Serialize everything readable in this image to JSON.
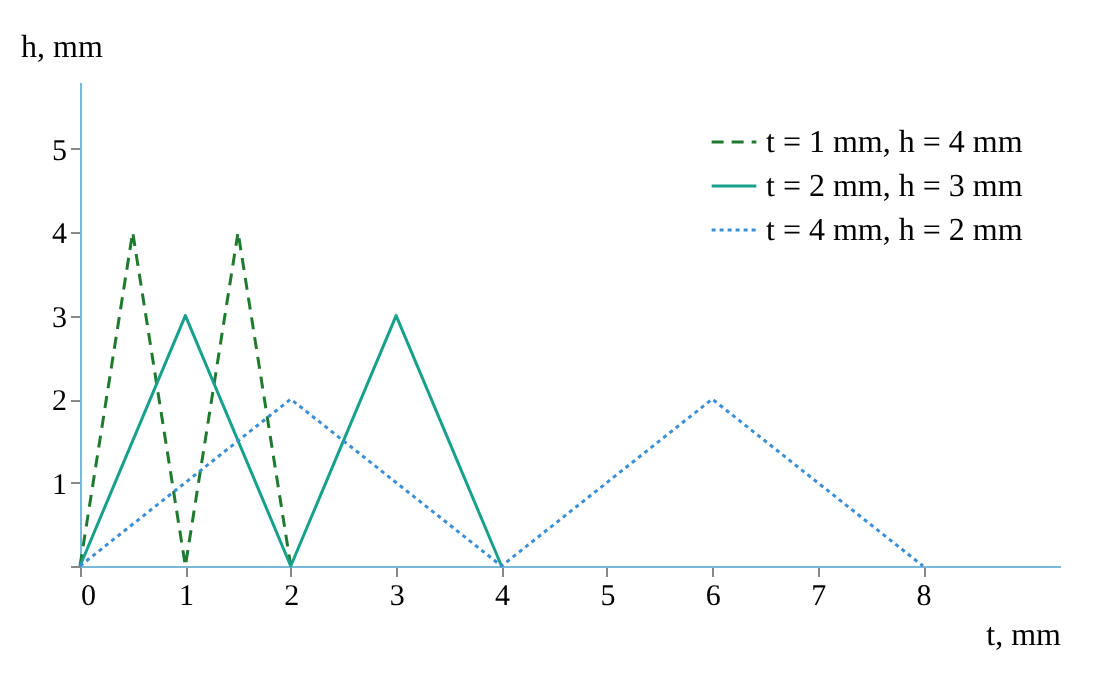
{
  "chart_data": {
    "type": "line",
    "xlabel": "t, mm",
    "ylabel": "h, mm",
    "xlim": [
      0,
      9.3
    ],
    "ylim": [
      0,
      5.8
    ],
    "xticks": [
      0,
      1,
      2,
      3,
      4,
      5,
      6,
      7,
      8
    ],
    "yticks": [
      {
        "value": 0,
        "label": null
      },
      1,
      2,
      3,
      4,
      5
    ],
    "grid": false,
    "legend": "top right",
    "marker": "none",
    "series": [
      {
        "name": "t = 1 mm, h = 4 mm",
        "color": "#1e7b2e",
        "line_style": "dashed",
        "x": [
          0,
          0.5,
          1,
          1.5,
          2
        ],
        "values": [
          0,
          4,
          0,
          4,
          0
        ]
      },
      {
        "name": "t = 2 mm, h = 3 mm",
        "color": "#17a08c",
        "line_style": "solid",
        "x": [
          0,
          1,
          2,
          3,
          4
        ],
        "values": [
          0,
          3,
          0,
          3,
          0
        ]
      },
      {
        "name": "t = 4 mm, h = 2 mm",
        "color": "#3a8fd6",
        "line_style": "dotted",
        "x": [
          0,
          2,
          4,
          6,
          8
        ],
        "values": [
          0,
          2,
          0,
          2,
          0
        ]
      }
    ]
  }
}
